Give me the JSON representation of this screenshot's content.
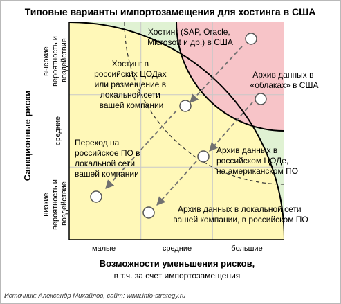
{
  "title": "Типовые варианты импортозамещения для хостинга в США",
  "y_axis": {
    "title": "Санкционные риски",
    "levels": [
      [
        "низкие",
        "вероятность и",
        "воздействие"
      ],
      [
        "средние"
      ],
      [
        "высокие",
        "вероятность и",
        "воздействие"
      ]
    ]
  },
  "x_axis": {
    "title_line1": "Возможности уменьшения рисков,",
    "title_line2": "в т.ч. за счет импортозамещения",
    "levels": [
      "малые",
      "средние",
      "большие"
    ]
  },
  "zones": {
    "high_risk_color": "#f7c4c8",
    "medium_risk_color": "#fff8b8",
    "low_risk_color": "#e0f2d3"
  },
  "items": [
    {
      "id": "us-hosting",
      "lines": [
        "Хостинг (SAP, Oracle,",
        "Microsoft и др.) в США"
      ]
    },
    {
      "id": "ru-dc-hosting",
      "lines": [
        "Хостинг в",
        "российских ЦОДах",
        "или размещение в",
        "локальной сети",
        "вашей компании"
      ]
    },
    {
      "id": "cloud-archive",
      "lines": [
        "Архив данных в",
        "«облаках» в США"
      ]
    },
    {
      "id": "ru-software",
      "lines": [
        "Переход на",
        "российское ПО в",
        "локальной сети",
        "вашей компании"
      ]
    },
    {
      "id": "ru-dc-archive",
      "lines": [
        "Архив данных в",
        "российском ЦОДе,",
        "на американском ПО"
      ]
    },
    {
      "id": "local-archive",
      "lines": [
        "Архив данных в локальной сети",
        "вашей компании, в российском ПО"
      ]
    }
  ],
  "source": "Источник: Александр Михайлов, сайт: www.info-strategy.ru"
}
